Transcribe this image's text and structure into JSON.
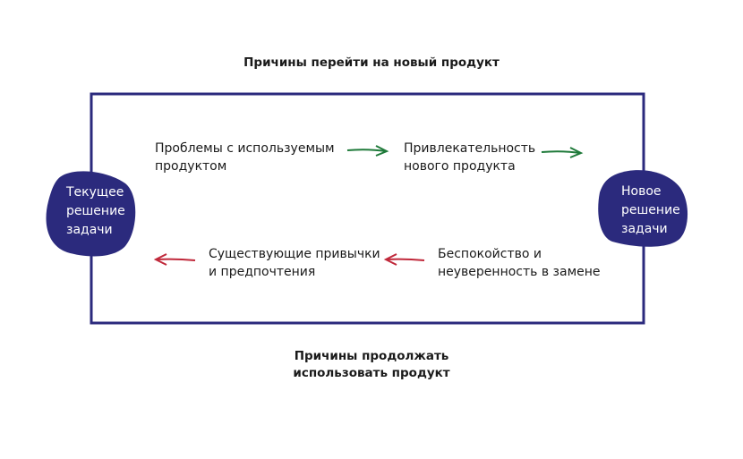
{
  "title_top": "Причины перейти на новый продукт",
  "title_bottom": [
    "Причины продолжать",
    "использовать продукт"
  ],
  "current_solution": [
    "Текущее",
    "решение",
    "задачи"
  ],
  "new_solution": [
    "Новое",
    "решение",
    "задачи"
  ],
  "forces": {
    "problems": [
      "Проблемы с используемым",
      "продуктом"
    ],
    "attraction": [
      "Привлекательность",
      "нового продукта"
    ],
    "habits": [
      "Существующие привычки",
      "и предпочтения"
    ],
    "anxiety": [
      "Беспокойство и",
      "неуверенность в замене"
    ]
  },
  "colors": {
    "frame": "#2b2a7d",
    "blob": "#2b2a7d",
    "push_arrow": "#1f7a3a",
    "pull_back_arrow": "#c0283a"
  }
}
